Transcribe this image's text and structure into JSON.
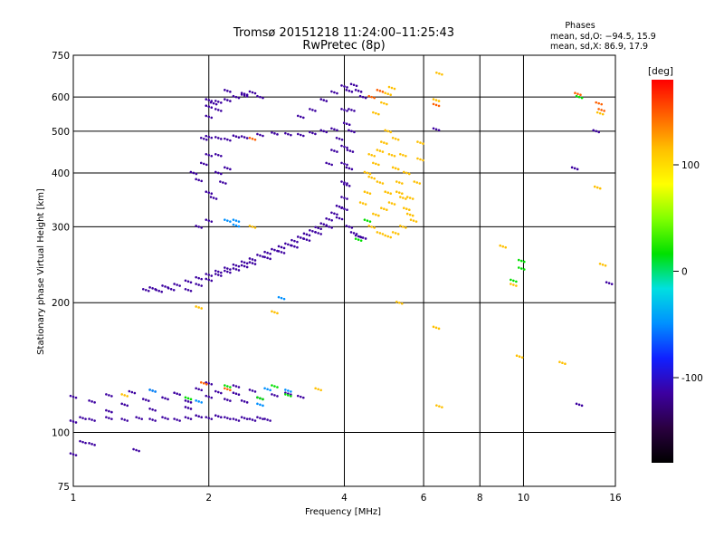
{
  "header": {
    "title_line1": "Tromsø 20151218 11:24:00–11:25:43",
    "title_line2": "RwPretec (8p)",
    "phases_title": "Phases",
    "phases_O": "mean, sd,O: −94.5, 15.9",
    "phases_X": "mean, sd,X:  86.9, 17.9"
  },
  "chart_data": {
    "type": "scatter",
    "xlabel": "Frequency [MHz]",
    "ylabel": "Stationary phase Virtual Height [km]",
    "x_scale": "log",
    "y_scale": "log",
    "xlim": [
      1,
      16
    ],
    "ylim": [
      75,
      750
    ],
    "x_ticks": [
      1,
      2,
      4,
      6,
      8,
      10,
      16
    ],
    "y_ticks": [
      75,
      100,
      200,
      300,
      400,
      500,
      600,
      750
    ],
    "colorbar": {
      "label": "[deg]",
      "range": [
        -180,
        180
      ],
      "ticks": [
        100,
        0,
        -100
      ],
      "colors": [
        "#000000",
        "#2a0040",
        "#3c00a0",
        "#1020ff",
        "#0090ff",
        "#00e0e0",
        "#00e000",
        "#80ff00",
        "#ffff00",
        "#ffc000",
        "#ff6000",
        "#ff0000"
      ]
    },
    "series": [
      {
        "phase": -100,
        "points": [
          [
            1.0,
            106
          ],
          [
            1.05,
            108
          ],
          [
            1.1,
            107
          ],
          [
            1.2,
            108
          ],
          [
            1.3,
            107
          ],
          [
            1.4,
            108
          ],
          [
            1.5,
            107
          ],
          [
            1.6,
            108
          ],
          [
            1.7,
            107
          ],
          [
            1.8,
            108
          ],
          [
            1.9,
            109
          ],
          [
            2.0,
            108
          ],
          [
            2.1,
            109
          ],
          [
            2.2,
            108
          ],
          [
            2.3,
            107
          ],
          [
            2.4,
            108
          ],
          [
            2.5,
            107
          ],
          [
            2.6,
            108
          ],
          [
            2.7,
            107
          ],
          [
            1.0,
            121
          ],
          [
            1.1,
            118
          ],
          [
            1.2,
            122
          ],
          [
            1.3,
            116
          ],
          [
            1.35,
            124
          ],
          [
            1.45,
            119
          ],
          [
            1.5,
            125
          ],
          [
            1.6,
            120
          ],
          [
            1.7,
            123
          ],
          [
            1.8,
            118
          ],
          [
            1.9,
            126
          ],
          [
            2.0,
            121
          ],
          [
            2.1,
            124
          ],
          [
            2.2,
            119
          ],
          [
            2.3,
            123
          ],
          [
            2.4,
            118
          ],
          [
            2.5,
            125
          ],
          [
            2.6,
            120
          ],
          [
            2.8,
            122
          ],
          [
            3.0,
            123
          ],
          [
            3.2,
            121
          ],
          [
            1.05,
            95
          ],
          [
            1.1,
            94
          ],
          [
            1.38,
            91
          ],
          [
            1.0,
            89
          ],
          [
            1.2,
            112
          ],
          [
            1.5,
            113
          ],
          [
            1.8,
            114
          ],
          [
            2.0,
            130
          ],
          [
            2.3,
            128
          ],
          [
            1.45,
            214
          ],
          [
            1.5,
            216
          ],
          [
            1.55,
            213
          ],
          [
            1.6,
            218
          ],
          [
            1.65,
            215
          ],
          [
            1.7,
            220
          ],
          [
            1.8,
            224
          ],
          [
            1.9,
            228
          ],
          [
            2.0,
            232
          ],
          [
            2.1,
            236
          ],
          [
            2.2,
            240
          ],
          [
            2.3,
            244
          ],
          [
            2.4,
            248
          ],
          [
            2.5,
            252
          ],
          [
            2.6,
            257
          ],
          [
            2.7,
            261
          ],
          [
            2.8,
            265
          ],
          [
            2.9,
            269
          ],
          [
            3.0,
            273
          ],
          [
            3.1,
            278
          ],
          [
            3.2,
            283
          ],
          [
            3.3,
            288
          ],
          [
            3.4,
            293
          ],
          [
            3.5,
            298
          ],
          [
            3.6,
            304
          ],
          [
            3.7,
            312
          ],
          [
            3.8,
            322
          ],
          [
            3.9,
            334
          ],
          [
            4.0,
            350
          ],
          [
            4.05,
            375
          ],
          [
            4.1,
            410
          ],
          [
            4.12,
            450
          ],
          [
            4.15,
            500
          ],
          [
            4.15,
            560
          ],
          [
            4.1,
            620
          ],
          [
            1.8,
            214
          ],
          [
            1.9,
            220
          ],
          [
            2.0,
            226
          ],
          [
            2.1,
            232
          ],
          [
            2.2,
            236
          ],
          [
            2.3,
            239
          ],
          [
            2.4,
            243
          ],
          [
            2.5,
            247
          ],
          [
            2.7,
            254
          ],
          [
            2.9,
            262
          ],
          [
            3.1,
            270
          ],
          [
            3.3,
            280
          ],
          [
            3.5,
            290
          ],
          [
            3.7,
            300
          ],
          [
            3.9,
            314
          ],
          [
            4.0,
            330
          ],
          [
            4.1,
            300
          ],
          [
            4.2,
            290
          ],
          [
            4.3,
            285
          ],
          [
            4.4,
            283
          ],
          [
            1.85,
            400
          ],
          [
            1.9,
            385
          ],
          [
            1.95,
            420
          ],
          [
            2.0,
            360
          ],
          [
            2.0,
            440
          ],
          [
            2.05,
            350
          ],
          [
            1.9,
            300
          ],
          [
            2.0,
            310
          ],
          [
            1.95,
            480
          ],
          [
            2.0,
            485
          ],
          [
            2.1,
            482
          ],
          [
            2.2,
            478
          ],
          [
            2.3,
            486
          ],
          [
            2.4,
            484
          ],
          [
            2.6,
            490
          ],
          [
            2.8,
            494
          ],
          [
            3.0,
            492
          ],
          [
            3.2,
            490
          ],
          [
            3.4,
            495
          ],
          [
            3.6,
            500
          ],
          [
            3.8,
            505
          ],
          [
            2.0,
            570
          ],
          [
            2.05,
            580
          ],
          [
            2.1,
            585
          ],
          [
            2.2,
            590
          ],
          [
            2.3,
            600
          ],
          [
            2.4,
            610
          ],
          [
            2.5,
            615
          ],
          [
            2.6,
            600
          ],
          [
            2.2,
            620
          ],
          [
            2.4,
            605
          ],
          [
            3.2,
            540
          ],
          [
            3.4,
            560
          ],
          [
            3.6,
            590
          ],
          [
            3.8,
            615
          ],
          [
            4.0,
            635
          ],
          [
            4.2,
            640
          ],
          [
            4.3,
            620
          ],
          [
            4.4,
            600
          ],
          [
            2.0,
            590
          ],
          [
            2.1,
            560
          ],
          [
            2.0,
            540
          ],
          [
            4.0,
            380
          ],
          [
            4.0,
            420
          ],
          [
            4.0,
            460
          ],
          [
            4.05,
            520
          ],
          [
            4.0,
            560
          ],
          [
            3.9,
            480
          ],
          [
            3.8,
            450
          ],
          [
            3.7,
            420
          ],
          [
            2.1,
            400
          ],
          [
            2.15,
            380
          ],
          [
            2.2,
            410
          ],
          [
            2.1,
            440
          ],
          [
            14.5,
            500
          ],
          [
            13.0,
            410
          ],
          [
            15.5,
            222
          ],
          [
            6.4,
            505
          ],
          [
            13.3,
            116
          ]
        ]
      },
      {
        "phase": 100,
        "points": [
          [
            4.4,
            340
          ],
          [
            4.5,
            360
          ],
          [
            4.6,
            390
          ],
          [
            4.7,
            420
          ],
          [
            4.8,
            450
          ],
          [
            4.9,
            470
          ],
          [
            5.0,
            500
          ],
          [
            5.1,
            440
          ],
          [
            5.2,
            410
          ],
          [
            5.3,
            380
          ],
          [
            5.4,
            350
          ],
          [
            5.5,
            330
          ],
          [
            5.6,
            320
          ],
          [
            5.7,
            310
          ],
          [
            4.6,
            300
          ],
          [
            4.8,
            290
          ],
          [
            5.0,
            285
          ],
          [
            5.2,
            290
          ],
          [
            5.4,
            300
          ],
          [
            5.6,
            350
          ],
          [
            5.8,
            380
          ],
          [
            5.9,
            430
          ],
          [
            5.9,
            470
          ],
          [
            4.7,
            320
          ],
          [
            4.9,
            330
          ],
          [
            5.1,
            340
          ],
          [
            5.3,
            360
          ],
          [
            5.5,
            400
          ],
          [
            4.5,
            400
          ],
          [
            4.6,
            440
          ],
          [
            4.8,
            380
          ],
          [
            5.0,
            360
          ],
          [
            5.2,
            480
          ],
          [
            5.4,
            440
          ],
          [
            4.7,
            550
          ],
          [
            4.9,
            580
          ],
          [
            5.0,
            610
          ],
          [
            5.1,
            630
          ],
          [
            6.5,
            680
          ],
          [
            9.0,
            270
          ],
          [
            9.5,
            220
          ],
          [
            9.8,
            150
          ],
          [
            12.2,
            145
          ],
          [
            14.8,
            550
          ],
          [
            14.6,
            370
          ],
          [
            6.4,
            175
          ],
          [
            6.4,
            590
          ],
          [
            5.3,
            200
          ],
          [
            6.5,
            115
          ],
          [
            15.0,
            245
          ],
          [
            2.5,
            300
          ],
          [
            2.8,
            190
          ],
          [
            1.9,
            195
          ],
          [
            1.3,
            122
          ],
          [
            3.5,
            126
          ]
        ]
      },
      {
        "phase": 0,
        "points": [
          [
            9.5,
            225
          ],
          [
            9.9,
            240
          ],
          [
            9.9,
            250
          ],
          [
            13.3,
            600
          ],
          [
            2.8,
            128
          ],
          [
            3.0,
            122
          ],
          [
            4.3,
            280
          ],
          [
            4.5,
            310
          ],
          [
            1.8,
            120
          ],
          [
            2.2,
            128
          ],
          [
            2.6,
            120
          ]
        ]
      },
      {
        "phase": -50,
        "points": [
          [
            1.5,
            125
          ],
          [
            1.9,
            118
          ],
          [
            2.6,
            116
          ],
          [
            2.7,
            126
          ],
          [
            3.0,
            125
          ],
          [
            2.3,
            302
          ],
          [
            2.9,
            205
          ],
          [
            2.2,
            310
          ],
          [
            2.3,
            310
          ]
        ]
      },
      {
        "phase": 160,
        "points": [
          [
            13.2,
            610
          ],
          [
            14.7,
            580
          ],
          [
            14.9,
            560
          ],
          [
            6.4,
            575
          ],
          [
            2.2,
            126
          ],
          [
            1.95,
            130
          ],
          [
            2.5,
            480
          ],
          [
            4.6,
            600
          ],
          [
            4.8,
            620
          ]
        ]
      }
    ]
  }
}
